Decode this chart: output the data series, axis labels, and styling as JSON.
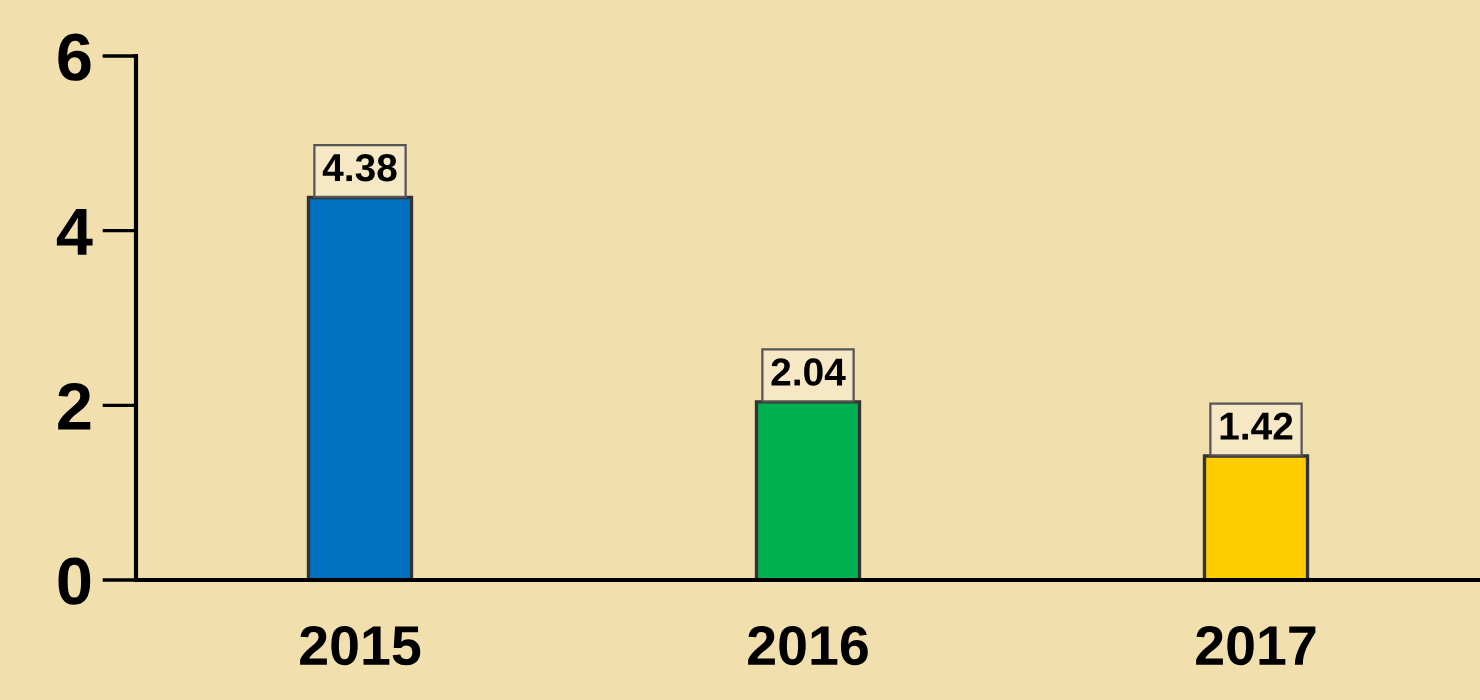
{
  "chart_data": {
    "type": "bar",
    "categories": [
      "2015",
      "2016",
      "2017"
    ],
    "values": [
      4.38,
      2.04,
      1.42
    ],
    "colors": [
      "#0070c0",
      "#00b050",
      "#ffcc00"
    ],
    "ylim": [
      0,
      6
    ],
    "yticks": [
      0,
      2,
      4,
      6
    ],
    "grid": false,
    "data_labels": true
  }
}
